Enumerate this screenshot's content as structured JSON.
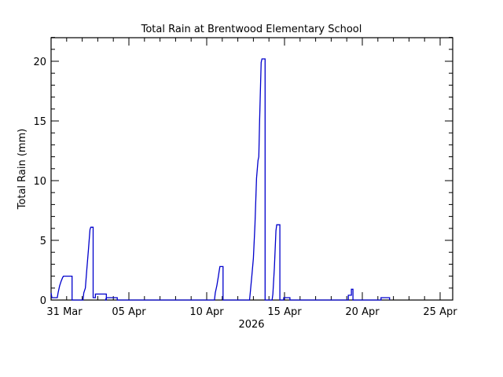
{
  "chart_data": {
    "type": "line",
    "title": "Total Rain at Brentwood Elementary School",
    "xlabel": "2026",
    "ylabel": "Total Rain (mm)",
    "ylim": [
      0,
      22
    ],
    "xlim_days": [
      0,
      30
    ],
    "x_tick_labels": [
      {
        "day": 0,
        "label": "31 Mar"
      },
      {
        "day": 5,
        "label": "05 Apr"
      },
      {
        "day": 10,
        "label": "10 Apr"
      },
      {
        "day": 15,
        "label": "15 Apr"
      },
      {
        "day": 20,
        "label": "20 Apr"
      },
      {
        "day": 25,
        "label": "25 Apr"
      }
    ],
    "y_tick_labels": [
      0,
      5,
      10,
      15,
      20
    ],
    "series_color": "#0000cc",
    "series": [
      {
        "name": "Total Rain",
        "points": [
          [
            0,
            0.6
          ],
          [
            0.05,
            0.2
          ],
          [
            0.4,
            0.2
          ],
          [
            0.45,
            0.6
          ],
          [
            0.55,
            1.2
          ],
          [
            0.65,
            1.6
          ],
          [
            0.75,
            1.9
          ],
          [
            0.8,
            2.0
          ],
          [
            0.9,
            2.0
          ],
          [
            1.05,
            2.0
          ],
          [
            1.15,
            2.0
          ],
          [
            1.35,
            2.0
          ],
          [
            1.35,
            0
          ],
          [
            1.75,
            0
          ],
          [
            2.05,
            0
          ],
          [
            2.1,
            0.6
          ],
          [
            2.2,
            1.0
          ],
          [
            2.3,
            2.6
          ],
          [
            2.4,
            4.2
          ],
          [
            2.5,
            5.9
          ],
          [
            2.55,
            6.1
          ],
          [
            2.6,
            6.1
          ],
          [
            2.7,
            6.1
          ],
          [
            2.7,
            0.2
          ],
          [
            2.85,
            0.2
          ],
          [
            2.85,
            0.5
          ],
          [
            2.9,
            0.5
          ],
          [
            3.4,
            0.5
          ],
          [
            3.55,
            0.5
          ],
          [
            3.55,
            0
          ],
          [
            3.5,
            0
          ],
          [
            3.55,
            0.2
          ],
          [
            4.2,
            0.2
          ],
          [
            4.25,
            0.2
          ],
          [
            4.25,
            0
          ],
          [
            10.5,
            0
          ],
          [
            10.55,
            0.6
          ],
          [
            10.65,
            1.2
          ],
          [
            10.75,
            2.0
          ],
          [
            10.8,
            2.4
          ],
          [
            10.85,
            2.8
          ],
          [
            11.05,
            2.8
          ],
          [
            11.05,
            0
          ],
          [
            12.75,
            0
          ],
          [
            12.8,
            0.6
          ],
          [
            12.9,
            2.0
          ],
          [
            13.0,
            3.5
          ],
          [
            13.1,
            6.3
          ],
          [
            13.2,
            10.2
          ],
          [
            13.3,
            11.7
          ],
          [
            13.35,
            12.0
          ],
          [
            13.4,
            15.0
          ],
          [
            13.45,
            17.5
          ],
          [
            13.5,
            19.9
          ],
          [
            13.55,
            20.2
          ],
          [
            13.75,
            20.2
          ],
          [
            13.75,
            0
          ],
          [
            14.2,
            0
          ],
          [
            14.25,
            0.5
          ],
          [
            14.35,
            2.7
          ],
          [
            14.45,
            5.8
          ],
          [
            14.5,
            6.3
          ],
          [
            14.7,
            6.3
          ],
          [
            14.7,
            0
          ],
          [
            14.95,
            0
          ],
          [
            14.95,
            0.2
          ],
          [
            15.35,
            0.2
          ],
          [
            15.35,
            0
          ],
          [
            19.1,
            0
          ],
          [
            19.1,
            0.4
          ],
          [
            19.3,
            0.4
          ],
          [
            19.3,
            0.9
          ],
          [
            19.4,
            0.9
          ],
          [
            19.4,
            0
          ],
          [
            21.2,
            0
          ],
          [
            21.2,
            0.2
          ],
          [
            21.75,
            0.2
          ],
          [
            21.75,
            0
          ]
        ]
      }
    ],
    "grid": false,
    "legend": "none"
  }
}
